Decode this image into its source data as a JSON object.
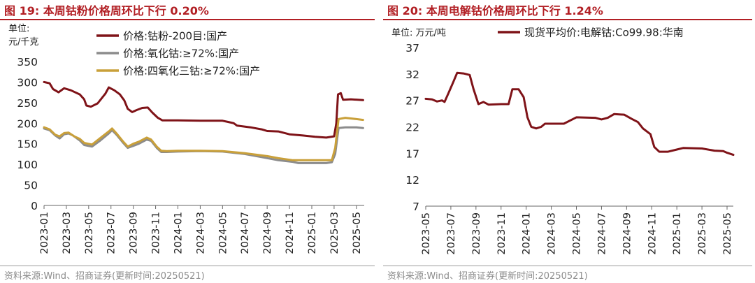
{
  "figures": [
    {
      "id": "left",
      "title": "图 19:  本周钴粉价格周环比下行 0.20%",
      "source": "资料来源:Wind、招商证券(更新时间:20250521)"
    },
    {
      "id": "right",
      "title": "图 20:  本周电解钴价格周环比下行 1.24%",
      "source": "资料来源:Wind、招商证券(更新时间:20250521)"
    }
  ],
  "chart_data": [
    {
      "type": "line",
      "unit_label": [
        "单位:",
        "元/千克"
      ],
      "ylim": [
        0,
        350
      ],
      "y_ticks": [
        0,
        50,
        100,
        150,
        200,
        250,
        300,
        350
      ],
      "x_tick_labels": [
        "2023-01",
        "2023-03",
        "2023-05",
        "2023-07",
        "2023-09",
        "2023-11",
        "2024-01",
        "2024-03",
        "2024-05",
        "2024-07",
        "2024-09",
        "2024-11",
        "2025-01",
        "2025-03",
        "2025-05"
      ],
      "x_range": [
        0,
        28.7
      ],
      "legend_position": "top",
      "series": [
        {
          "name": "价格:钴粉-200目:国产",
          "color": "#7f1318",
          "points": [
            [
              0,
              300
            ],
            [
              0.5,
              297
            ],
            [
              0.8,
              283
            ],
            [
              1.3,
              275
            ],
            [
              1.8,
              285
            ],
            [
              2.4,
              280
            ],
            [
              3.2,
              270
            ],
            [
              3.6,
              258
            ],
            [
              3.8,
              243
            ],
            [
              4.2,
              240
            ],
            [
              4.8,
              248
            ],
            [
              5.5,
              272
            ],
            [
              5.8,
              287
            ],
            [
              6.3,
              280
            ],
            [
              6.8,
              270
            ],
            [
              7.2,
              255
            ],
            [
              7.5,
              235
            ],
            [
              7.9,
              227
            ],
            [
              8.3,
              232
            ],
            [
              8.8,
              237
            ],
            [
              9.3,
              238
            ],
            [
              9.7,
              226
            ],
            [
              10.2,
              213
            ],
            [
              10.6,
              207
            ],
            [
              12,
              207
            ],
            [
              14,
              206
            ],
            [
              16,
              206
            ],
            [
              16.5,
              203
            ],
            [
              17,
              200
            ],
            [
              17.3,
              194
            ],
            [
              18.5,
              190
            ],
            [
              19.5,
              185
            ],
            [
              20,
              181
            ],
            [
              21,
              180
            ],
            [
              22,
              173
            ],
            [
              23.2,
              170
            ],
            [
              24.3,
              167
            ],
            [
              25.3,
              165
            ],
            [
              26,
              168
            ],
            [
              26.2,
              200
            ],
            [
              26.35,
              270
            ],
            [
              26.6,
              273
            ],
            [
              26.8,
              257
            ],
            [
              27.5,
              258
            ],
            [
              28.6,
              256
            ]
          ]
        },
        {
          "name": "价格:氧化钴:≥72%:国产",
          "color": "#8c8c8c",
          "points": [
            [
              0,
              187
            ],
            [
              0.5,
              183
            ],
            [
              1,
              170
            ],
            [
              1.4,
              163
            ],
            [
              1.8,
              173
            ],
            [
              2.2,
              175
            ],
            [
              2.6,
              170
            ],
            [
              3.2,
              158
            ],
            [
              3.6,
              147
            ],
            [
              4.3,
              143
            ],
            [
              5,
              157
            ],
            [
              5.8,
              175
            ],
            [
              6.1,
              183
            ],
            [
              6.5,
              172
            ],
            [
              7.1,
              152
            ],
            [
              7.5,
              140
            ],
            [
              8,
              145
            ],
            [
              8.5,
              150
            ],
            [
              9.2,
              160
            ],
            [
              9.6,
              157
            ],
            [
              10.1,
              140
            ],
            [
              10.5,
              130
            ],
            [
              11,
              130
            ],
            [
              12,
              131
            ],
            [
              14,
              132
            ],
            [
              16,
              131
            ],
            [
              18,
              125
            ],
            [
              20,
              115
            ],
            [
              21,
              110
            ],
            [
              22.3,
              106
            ],
            [
              22.8,
              103
            ],
            [
              24,
              103
            ],
            [
              25.3,
              103
            ],
            [
              25.8,
              105
            ],
            [
              26.1,
              125
            ],
            [
              26.4,
              188
            ],
            [
              27,
              190
            ],
            [
              28,
              190
            ],
            [
              28.6,
              188
            ]
          ]
        },
        {
          "name": "价格:四氧化三钴:≥72%:国产",
          "color": "#c9a03a",
          "points": [
            [
              0,
              190
            ],
            [
              0.5,
              185
            ],
            [
              1,
              172
            ],
            [
              1.4,
              168
            ],
            [
              1.8,
              176
            ],
            [
              2.2,
              177
            ],
            [
              2.7,
              168
            ],
            [
              3.2,
              162
            ],
            [
              3.6,
              152
            ],
            [
              4.3,
              148
            ],
            [
              5,
              163
            ],
            [
              5.8,
              180
            ],
            [
              6.1,
              187
            ],
            [
              6.5,
              175
            ],
            [
              7.1,
              155
            ],
            [
              7.5,
              143
            ],
            [
              8,
              150
            ],
            [
              8.5,
              155
            ],
            [
              9.2,
              165
            ],
            [
              9.6,
              160
            ],
            [
              10.1,
              143
            ],
            [
              10.5,
              133
            ],
            [
              11,
              132
            ],
            [
              12,
              133
            ],
            [
              14,
              133
            ],
            [
              16,
              132
            ],
            [
              18,
              127
            ],
            [
              20,
              120
            ],
            [
              21,
              115
            ],
            [
              22.3,
              110
            ],
            [
              23.5,
              110
            ],
            [
              25.3,
              110
            ],
            [
              25.8,
              110
            ],
            [
              26.1,
              140
            ],
            [
              26.4,
              210
            ],
            [
              27,
              213
            ],
            [
              28,
              210
            ],
            [
              28.6,
              208
            ]
          ]
        }
      ]
    },
    {
      "type": "line",
      "unit_label": [
        "单位: 万元/吨"
      ],
      "ylim": [
        7,
        37
      ],
      "y_ticks": [
        7,
        12,
        17,
        22,
        27,
        32,
        37
      ],
      "x_tick_labels": [
        "2023-05",
        "2023-07",
        "2023-09",
        "2023-11",
        "2024-01",
        "2024-03",
        "2024-05",
        "2024-07",
        "2024-09",
        "2024-11",
        "2025-01",
        "2025-03",
        "2025-05"
      ],
      "x_range": [
        0,
        24.5
      ],
      "legend_position": "top",
      "series": [
        {
          "name": "现货平均价:电解钴:Co99.98:华南",
          "color": "#7f1318",
          "points": [
            [
              0,
              27.3
            ],
            [
              0.5,
              27.2
            ],
            [
              0.9,
              26.8
            ],
            [
              1.3,
              27
            ],
            [
              1.5,
              26.7
            ],
            [
              1.8,
              28.3
            ],
            [
              2.2,
              30.5
            ],
            [
              2.5,
              32.2
            ],
            [
              3,
              32.1
            ],
            [
              3.5,
              31.8
            ],
            [
              3.8,
              29.2
            ],
            [
              4.2,
              26.3
            ],
            [
              4.6,
              26.7
            ],
            [
              5,
              26.2
            ],
            [
              6,
              26.3
            ],
            [
              6.6,
              26.3
            ],
            [
              6.9,
              29.1
            ],
            [
              7.4,
              29.1
            ],
            [
              7.8,
              27.6
            ],
            [
              8.1,
              23.8
            ],
            [
              8.4,
              22
            ],
            [
              8.8,
              21.7
            ],
            [
              9.2,
              22
            ],
            [
              9.5,
              22.6
            ],
            [
              11,
              22.6
            ],
            [
              12,
              23.8
            ],
            [
              13.5,
              23.7
            ],
            [
              14,
              23.4
            ],
            [
              14.5,
              23.7
            ],
            [
              15,
              24.4
            ],
            [
              15.8,
              24.3
            ],
            [
              16.4,
              23.5
            ],
            [
              16.9,
              22.9
            ],
            [
              17.3,
              21.7
            ],
            [
              17.9,
              20.6
            ],
            [
              18.2,
              18.2
            ],
            [
              18.6,
              17.3
            ],
            [
              19.3,
              17.3
            ],
            [
              20,
              17.7
            ],
            [
              20.5,
              18
            ],
            [
              22,
              17.9
            ],
            [
              23,
              17.5
            ],
            [
              23.7,
              17.4
            ],
            [
              24,
              17.1
            ],
            [
              24.5,
              16.7
            ]
          ]
        }
      ]
    }
  ]
}
